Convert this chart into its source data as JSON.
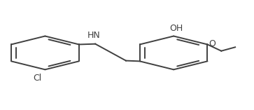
{
  "bg_color": "#ffffff",
  "line_color": "#404040",
  "text_color": "#404040",
  "line_width": 1.4,
  "font_size": 8.5,
  "lcx": 0.175,
  "lcy": 0.52,
  "lr": 0.155,
  "rcx": 0.685,
  "rcy": 0.52,
  "rr": 0.155,
  "cl_label": "Cl",
  "nh_label": "HN",
  "oh_label": "OH",
  "o_label": "O"
}
